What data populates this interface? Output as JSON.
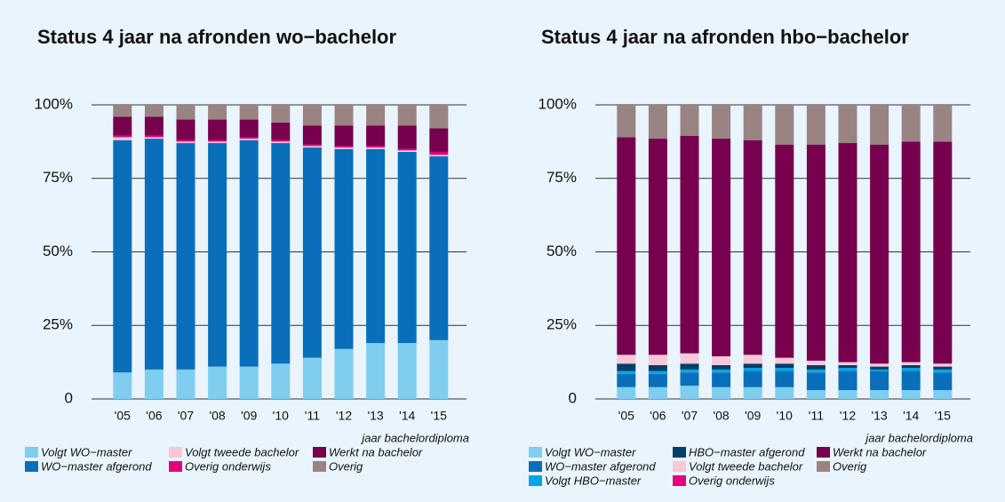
{
  "chart_data": [
    {
      "type": "stacked_bar",
      "title": "Status 4 jaar na afronden wo−bachelor",
      "x_label": "jaar bachelordiploma",
      "categories": [
        "'05",
        "'06",
        "'07",
        "'08",
        "'09",
        "'10",
        "'11",
        "'12",
        "'13",
        "'14",
        "'15"
      ],
      "ylim": [
        0,
        100
      ],
      "yticks": [
        0,
        {
          "value": 25,
          "label": "25%"
        },
        {
          "value": 50,
          "label": "50%"
        },
        {
          "value": 75,
          "label": "75%"
        },
        {
          "value": 100,
          "label": "100%"
        }
      ],
      "grid": true,
      "series": [
        {
          "name": "Volgt WO−master",
          "color": "#7fcdef",
          "values": [
            9,
            10,
            10,
            11,
            11,
            12,
            14,
            17,
            19,
            19,
            20
          ]
        },
        {
          "name": "WO−master afgerond",
          "color": "#0a6fba",
          "values": [
            79,
            78.5,
            77,
            76,
            77,
            75,
            71.5,
            68,
            66,
            65,
            62.5
          ]
        },
        {
          "name": "Volgt tweede bachelor",
          "color": "#f9c8d7",
          "values": [
            1,
            0.5,
            0.5,
            0.5,
            0.5,
            0.5,
            0.5,
            0.5,
            0.5,
            0.5,
            0.5
          ]
        },
        {
          "name": "Overig onderwijs",
          "color": "#e5007e",
          "values": [
            0.5,
            0.5,
            0.5,
            0.5,
            0.5,
            0.5,
            0.5,
            0.5,
            0.5,
            0.5,
            1
          ]
        },
        {
          "name": "Werkt na bachelor",
          "color": "#77004f",
          "values": [
            6.5,
            6.5,
            7,
            7,
            6,
            6,
            6.5,
            7,
            7,
            8,
            8
          ]
        },
        {
          "name": "Overig",
          "color": "#9a8481",
          "values": [
            4,
            4,
            5,
            5,
            5,
            6,
            7,
            7,
            7,
            7,
            8
          ]
        }
      ]
    },
    {
      "type": "stacked_bar",
      "title": "Status 4 jaar na afronden hbo−bachelor",
      "x_label": "jaar bachelordiploma",
      "categories": [
        "'05",
        "'06",
        "'07",
        "'08",
        "'09",
        "'10",
        "'11",
        "'12",
        "'13",
        "'14",
        "'15"
      ],
      "ylim": [
        0,
        100
      ],
      "yticks": [
        0,
        {
          "value": 25,
          "label": "25%"
        },
        {
          "value": 50,
          "label": "50%"
        },
        {
          "value": 75,
          "label": "75%"
        },
        {
          "value": 100,
          "label": "100%"
        }
      ],
      "grid": true,
      "series": [
        {
          "name": "Volgt WO−master",
          "color": "#7fcdef",
          "values": [
            4,
            4,
            4.5,
            4,
            4,
            4,
            3,
            3,
            3,
            3,
            3
          ]
        },
        {
          "name": "WO−master afgerond",
          "color": "#0a6fba",
          "values": [
            4.5,
            4.5,
            4.5,
            5,
            5.5,
            5.5,
            6,
            6.5,
            6.5,
            6.5,
            6
          ]
        },
        {
          "name": "Volgt HBO−master",
          "color": "#00a7e5",
          "values": [
            1,
            1,
            1,
            1,
            1,
            1,
            1,
            1,
            0.5,
            1,
            1
          ]
        },
        {
          "name": "HBO−master afgerond",
          "color": "#003e6b",
          "values": [
            2.5,
            2,
            2,
            1.5,
            1.5,
            1.5,
            1.5,
            1,
            1,
            1,
            1
          ]
        },
        {
          "name": "Volgt tweede bachelor",
          "color": "#f9c8d7",
          "values": [
            3,
            3.5,
            3.5,
            3,
            3,
            2,
            1.5,
            1,
            1,
            1,
            1
          ]
        },
        {
          "name": "Overig onderwijs",
          "color": "#e5007e",
          "values": [
            0,
            0,
            0,
            0,
            0,
            0,
            0,
            0,
            0,
            0,
            0
          ]
        },
        {
          "name": "Werkt na bachelor",
          "color": "#77004f",
          "values": [
            74,
            73.5,
            74,
            74,
            73,
            72.5,
            73.5,
            74.5,
            74.5,
            75,
            75.5
          ]
        },
        {
          "name": "Overig",
          "color": "#9a8481",
          "values": [
            11,
            11.5,
            10.5,
            11.5,
            12,
            13.5,
            13.5,
            13,
            13.5,
            12.5,
            12.5
          ]
        }
      ]
    }
  ]
}
